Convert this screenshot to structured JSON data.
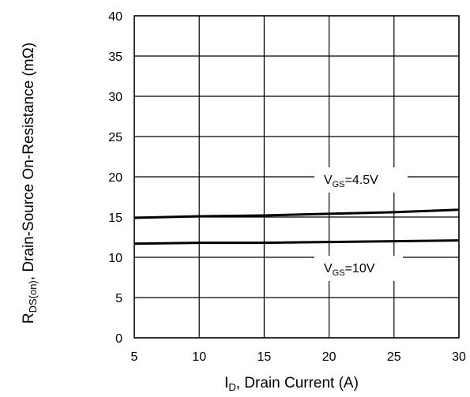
{
  "chart_data": {
    "type": "line",
    "title": "",
    "xlabel": {
      "main": "I",
      "sub": "D",
      "rest": ", Drain Current (A)"
    },
    "ylabel": {
      "main": "R",
      "sub": "DS(on)",
      "rest": ", Drain-Source On-Resistance (mΩ)"
    },
    "xlim": [
      5,
      30
    ],
    "ylim": [
      0,
      40
    ],
    "xticks": [
      "5",
      "10",
      "15",
      "20",
      "25",
      "30"
    ],
    "yticks": [
      "0",
      "5",
      "10",
      "15",
      "20",
      "25",
      "30",
      "35",
      "40"
    ],
    "grid": true,
    "series": [
      {
        "name": {
          "main": "V",
          "sub": "GS",
          "rest": "=4.5V"
        },
        "color": "#000000",
        "x": [
          5,
          10,
          15,
          20,
          25,
          30
        ],
        "y": [
          14.9,
          15.1,
          15.2,
          15.4,
          15.6,
          15.9
        ]
      },
      {
        "name": {
          "main": "V",
          "sub": "GS",
          "rest": "=10V"
        },
        "color": "#000000",
        "x": [
          5,
          10,
          15,
          20,
          25,
          30
        ],
        "y": [
          11.7,
          11.8,
          11.8,
          11.9,
          12.0,
          12.1
        ]
      }
    ]
  }
}
